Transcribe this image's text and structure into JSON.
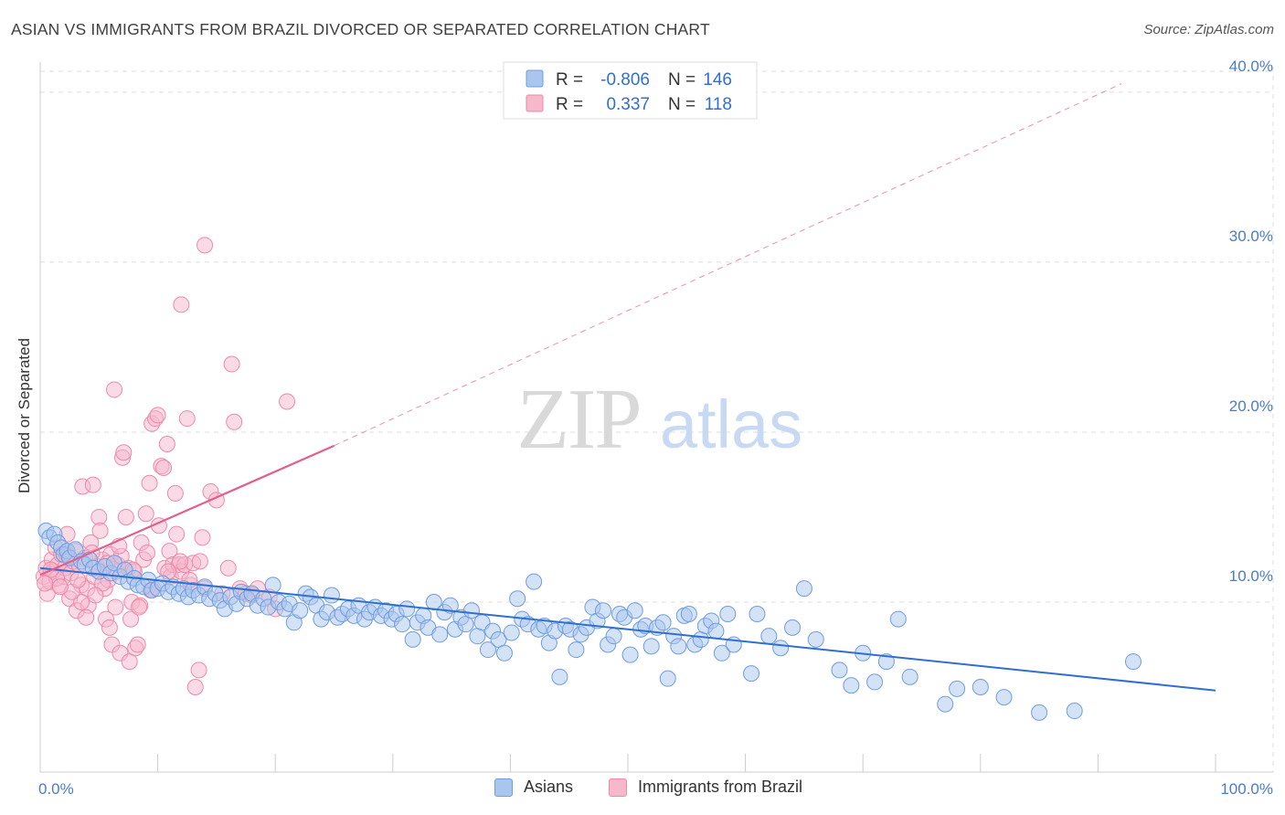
{
  "header": {
    "title": "ASIAN VS IMMIGRANTS FROM BRAZIL DIVORCED OR SEPARATED CORRELATION CHART",
    "source": "Source: ZipAtlas.com"
  },
  "watermark": {
    "zip": "ZIP",
    "atlas": "atlas"
  },
  "colors": {
    "asians_fill": "#a9c6ee",
    "asians_stroke": "#6f9de0",
    "asians_line": "#2f6fd0",
    "brazil_fill": "#f6b8cb",
    "brazil_stroke": "#ee89a8",
    "brazil_line": "#e0608b",
    "tick_text": "#4a7bcf",
    "grid": "#dddddd"
  },
  "legend": {
    "rows": [
      {
        "r_label": "R =",
        "r_value": "-0.806",
        "n_label": "N =",
        "n_value": "146"
      },
      {
        "r_label": "R =",
        "r_value": "0.337",
        "n_label": "N =",
        "n_value": "118"
      }
    ]
  },
  "chart_data": {
    "type": "scatter",
    "title": "ASIAN VS IMMIGRANTS FROM BRAZIL DIVORCED OR SEPARATED CORRELATION CHART",
    "xlabel": "",
    "ylabel": "Divorced or Separated",
    "xlim": [
      0,
      100
    ],
    "ylim": [
      0,
      41.5
    ],
    "x_tick_labels": [
      "0.0%",
      "100.0%"
    ],
    "y_ticks": [
      10,
      20,
      30,
      40
    ],
    "y_tick_labels": [
      "10.0%",
      "20.0%",
      "30.0%",
      "40.0%"
    ],
    "grid": true,
    "legend_position": "top-center",
    "series": [
      {
        "name": "Asians",
        "r": -0.806,
        "n": 146,
        "trend": {
          "x": [
            0,
            100
          ],
          "y": [
            12.0,
            4.8
          ],
          "style": "solid"
        },
        "points": [
          [
            0.5,
            14.2
          ],
          [
            0.8,
            13.8
          ],
          [
            1.2,
            14.0
          ],
          [
            1.5,
            13.5
          ],
          [
            1.8,
            13.2
          ],
          [
            2.0,
            12.8
          ],
          [
            2.3,
            13.0
          ],
          [
            2.5,
            12.6
          ],
          [
            3.0,
            13.1
          ],
          [
            3.5,
            12.4
          ],
          [
            3.8,
            12.2
          ],
          [
            4.2,
            12.5
          ],
          [
            4.5,
            12.0
          ],
          [
            5.0,
            11.8
          ],
          [
            5.5,
            12.1
          ],
          [
            6.0,
            11.7
          ],
          [
            6.3,
            12.3
          ],
          [
            6.8,
            11.5
          ],
          [
            7.2,
            11.9
          ],
          [
            7.5,
            11.2
          ],
          [
            8.0,
            11.4
          ],
          [
            8.3,
            11.0
          ],
          [
            8.8,
            10.9
          ],
          [
            9.2,
            11.3
          ],
          [
            9.5,
            10.7
          ],
          [
            10.0,
            10.8
          ],
          [
            10.4,
            11.1
          ],
          [
            10.9,
            10.6
          ],
          [
            11.3,
            10.9
          ],
          [
            11.8,
            10.5
          ],
          [
            12.2,
            10.8
          ],
          [
            12.6,
            10.3
          ],
          [
            13.0,
            10.7
          ],
          [
            13.5,
            10.4
          ],
          [
            14.0,
            10.9
          ],
          [
            14.4,
            10.2
          ],
          [
            14.9,
            10.5
          ],
          [
            15.3,
            10.1
          ],
          [
            15.7,
            9.6
          ],
          [
            16.2,
            10.3
          ],
          [
            16.7,
            9.9
          ],
          [
            17.1,
            10.6
          ],
          [
            17.6,
            10.2
          ],
          [
            18.0,
            10.5
          ],
          [
            18.5,
            9.8
          ],
          [
            19.0,
            10.2
          ],
          [
            19.4,
            9.7
          ],
          [
            19.8,
            11.0
          ],
          [
            20.3,
            10.0
          ],
          [
            20.8,
            9.6
          ],
          [
            21.2,
            9.9
          ],
          [
            21.6,
            8.8
          ],
          [
            22.1,
            9.5
          ],
          [
            22.6,
            10.5
          ],
          [
            23.0,
            10.3
          ],
          [
            23.5,
            9.8
          ],
          [
            23.9,
            9.0
          ],
          [
            24.4,
            9.4
          ],
          [
            24.8,
            10.4
          ],
          [
            25.3,
            9.1
          ],
          [
            25.7,
            9.3
          ],
          [
            26.2,
            9.6
          ],
          [
            26.7,
            9.2
          ],
          [
            27.1,
            9.8
          ],
          [
            27.6,
            9.0
          ],
          [
            28.0,
            9.4
          ],
          [
            28.5,
            9.7
          ],
          [
            29.0,
            9.2
          ],
          [
            29.4,
            9.5
          ],
          [
            29.9,
            9.0
          ],
          [
            30.3,
            9.3
          ],
          [
            30.8,
            8.7
          ],
          [
            31.2,
            9.6
          ],
          [
            31.7,
            7.8
          ],
          [
            32.1,
            8.8
          ],
          [
            32.6,
            9.2
          ],
          [
            33.0,
            8.5
          ],
          [
            33.5,
            10.0
          ],
          [
            34.0,
            8.1
          ],
          [
            34.4,
            9.4
          ],
          [
            34.9,
            9.8
          ],
          [
            35.3,
            8.4
          ],
          [
            35.8,
            9.1
          ],
          [
            36.2,
            8.7
          ],
          [
            36.7,
            9.5
          ],
          [
            37.2,
            8.0
          ],
          [
            37.6,
            8.8
          ],
          [
            38.1,
            7.2
          ],
          [
            38.5,
            8.3
          ],
          [
            39.0,
            7.8
          ],
          [
            39.5,
            7.0
          ],
          [
            40.1,
            8.2
          ],
          [
            40.6,
            10.2
          ],
          [
            41.0,
            9.0
          ],
          [
            41.5,
            8.7
          ],
          [
            42.0,
            11.2
          ],
          [
            42.4,
            8.4
          ],
          [
            42.9,
            8.6
          ],
          [
            43.3,
            7.6
          ],
          [
            43.8,
            8.3
          ],
          [
            44.2,
            5.6
          ],
          [
            44.7,
            8.6
          ],
          [
            45.1,
            8.4
          ],
          [
            45.6,
            7.2
          ],
          [
            46.0,
            8.1
          ],
          [
            46.5,
            8.5
          ],
          [
            47.0,
            9.7
          ],
          [
            47.4,
            8.9
          ],
          [
            47.9,
            9.5
          ],
          [
            48.3,
            7.5
          ],
          [
            48.8,
            8.0
          ],
          [
            49.3,
            9.3
          ],
          [
            49.7,
            9.1
          ],
          [
            50.2,
            6.9
          ],
          [
            50.6,
            9.5
          ],
          [
            51.1,
            8.4
          ],
          [
            51.5,
            8.6
          ],
          [
            52.0,
            7.4
          ],
          [
            52.5,
            8.5
          ],
          [
            53.0,
            8.8
          ],
          [
            53.4,
            5.5
          ],
          [
            53.9,
            8.0
          ],
          [
            54.3,
            7.4
          ],
          [
            54.8,
            9.2
          ],
          [
            55.2,
            9.3
          ],
          [
            55.7,
            7.5
          ],
          [
            56.2,
            7.8
          ],
          [
            56.6,
            8.6
          ],
          [
            57.1,
            8.9
          ],
          [
            57.5,
            8.3
          ],
          [
            58.0,
            7.0
          ],
          [
            58.5,
            9.3
          ],
          [
            59.0,
            7.5
          ],
          [
            60.5,
            5.8
          ],
          [
            61.0,
            9.3
          ],
          [
            62.0,
            8.0
          ],
          [
            63.0,
            7.3
          ],
          [
            64.0,
            8.5
          ],
          [
            65.0,
            10.8
          ],
          [
            66.0,
            7.8
          ],
          [
            68.0,
            6.0
          ],
          [
            69.0,
            5.1
          ],
          [
            70.0,
            7.0
          ],
          [
            71.0,
            5.3
          ],
          [
            72.0,
            6.5
          ],
          [
            73.0,
            9.0
          ],
          [
            74.0,
            5.6
          ],
          [
            77.0,
            4.0
          ],
          [
            78.0,
            4.9
          ],
          [
            80.0,
            5.0
          ],
          [
            82.0,
            4.4
          ],
          [
            85.0,
            3.5
          ],
          [
            88.0,
            3.6
          ],
          [
            93.0,
            6.5
          ]
        ]
      },
      {
        "name": "Immigrants from Brazil",
        "r": 0.337,
        "n": 118,
        "trend": {
          "x": [
            0,
            25,
            92
          ],
          "y": [
            11.6,
            19.2,
            40.5
          ],
          "solid_until_x": 25,
          "style": "solid-then-dashed"
        },
        "points": [
          [
            0.3,
            11.5
          ],
          [
            0.5,
            12.0
          ],
          [
            0.6,
            10.5
          ],
          [
            0.8,
            11.2
          ],
          [
            1.0,
            12.5
          ],
          [
            1.1,
            11.8
          ],
          [
            1.3,
            13.2
          ],
          [
            1.5,
            12.2
          ],
          [
            1.6,
            11.0
          ],
          [
            1.8,
            12.8
          ],
          [
            2.0,
            11.5
          ],
          [
            2.1,
            12.0
          ],
          [
            2.3,
            14.0
          ],
          [
            2.5,
            10.2
          ],
          [
            2.6,
            11.7
          ],
          [
            2.8,
            12.4
          ],
          [
            3.0,
            13.0
          ],
          [
            3.1,
            9.5
          ],
          [
            3.3,
            12.2
          ],
          [
            3.5,
            11.0
          ],
          [
            3.6,
            16.8
          ],
          [
            3.8,
            12.6
          ],
          [
            4.0,
            10.8
          ],
          [
            4.1,
            9.8
          ],
          [
            4.3,
            13.5
          ],
          [
            4.5,
            16.9
          ],
          [
            4.6,
            11.5
          ],
          [
            4.8,
            12.1
          ],
          [
            5.0,
            15.0
          ],
          [
            5.1,
            14.2
          ],
          [
            5.3,
            12.5
          ],
          [
            5.5,
            10.8
          ],
          [
            5.6,
            9.0
          ],
          [
            5.8,
            11.3
          ],
          [
            6.0,
            12.8
          ],
          [
            6.1,
            7.5
          ],
          [
            6.3,
            22.5
          ],
          [
            6.5,
            11.8
          ],
          [
            6.6,
            12.2
          ],
          [
            6.8,
            7.0
          ],
          [
            7.0,
            18.5
          ],
          [
            7.1,
            18.8
          ],
          [
            7.3,
            15.0
          ],
          [
            7.5,
            12.0
          ],
          [
            7.6,
            6.5
          ],
          [
            7.8,
            10.0
          ],
          [
            8.0,
            11.8
          ],
          [
            8.1,
            7.3
          ],
          [
            8.3,
            7.5
          ],
          [
            8.5,
            9.8
          ],
          [
            8.6,
            13.5
          ],
          [
            8.8,
            12.5
          ],
          [
            9.0,
            15.2
          ],
          [
            9.1,
            12.9
          ],
          [
            9.3,
            17.0
          ],
          [
            9.5,
            20.5
          ],
          [
            9.6,
            10.8
          ],
          [
            9.8,
            20.8
          ],
          [
            10.0,
            21.0
          ],
          [
            10.1,
            14.5
          ],
          [
            10.3,
            18.0
          ],
          [
            10.5,
            17.9
          ],
          [
            10.6,
            12.0
          ],
          [
            10.8,
            19.3
          ],
          [
            11.0,
            13.0
          ],
          [
            11.1,
            11.5
          ],
          [
            11.3,
            12.2
          ],
          [
            11.5,
            16.4
          ],
          [
            11.6,
            14.0
          ],
          [
            11.8,
            12.2
          ],
          [
            12.0,
            11.8
          ],
          [
            12.3,
            12.2
          ],
          [
            12.5,
            20.8
          ],
          [
            12.8,
            11.0
          ],
          [
            13.0,
            12.3
          ],
          [
            13.2,
            5.0
          ],
          [
            13.5,
            6.0
          ],
          [
            13.8,
            13.8
          ],
          [
            14.0,
            10.8
          ],
          [
            14.5,
            16.5
          ],
          [
            15.0,
            16.0
          ],
          [
            15.5,
            10.5
          ],
          [
            16.0,
            12.0
          ],
          [
            16.3,
            24.0
          ],
          [
            16.5,
            20.6
          ],
          [
            17.0,
            10.8
          ],
          [
            17.5,
            10.5
          ],
          [
            18.0,
            10.4
          ],
          [
            18.5,
            10.8
          ],
          [
            19.5,
            10.3
          ],
          [
            20.0,
            9.6
          ],
          [
            21.0,
            21.8
          ],
          [
            14.0,
            31.0
          ],
          [
            12.0,
            27.5
          ],
          [
            3.5,
            10.0
          ],
          [
            2.7,
            10.6
          ],
          [
            5.3,
            11.1
          ],
          [
            6.9,
            12.7
          ],
          [
            7.9,
            11.9
          ],
          [
            1.4,
            11.4
          ],
          [
            0.9,
            11.9
          ],
          [
            2.2,
            12.9
          ],
          [
            4.7,
            10.4
          ],
          [
            3.9,
            9.1
          ],
          [
            5.9,
            8.5
          ],
          [
            6.4,
            9.7
          ],
          [
            7.7,
            9.0
          ],
          [
            8.4,
            9.7
          ],
          [
            9.4,
            10.7
          ],
          [
            10.9,
            11.8
          ],
          [
            11.9,
            12.4
          ],
          [
            12.7,
            11.3
          ],
          [
            13.6,
            12.4
          ],
          [
            0.4,
            11.1
          ],
          [
            1.7,
            10.9
          ],
          [
            2.4,
            12.7
          ],
          [
            3.2,
            11.3
          ],
          [
            4.4,
            12.9
          ],
          [
            5.7,
            12.3
          ],
          [
            6.7,
            13.3
          ]
        ]
      }
    ]
  },
  "bottom_legend": {
    "items": [
      "Asians",
      "Immigrants from Brazil"
    ]
  }
}
